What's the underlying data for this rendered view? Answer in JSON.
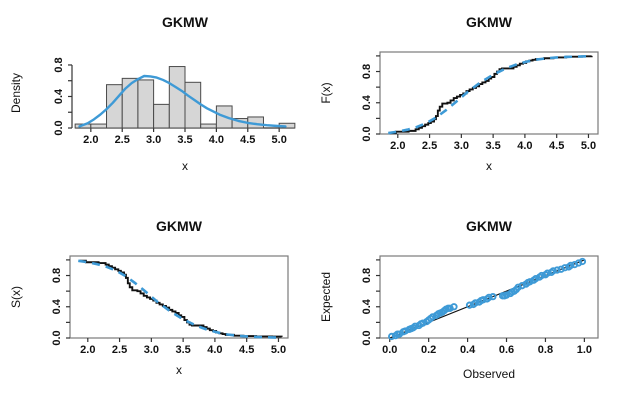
{
  "colors": {
    "curve_blue": "#3E9AD6",
    "bar_fill": "#D6D6D6",
    "bar_stroke": "#4A4A4A",
    "line_black": "#111111",
    "frame_gray": "#7A7A7A",
    "axis": "#333333"
  },
  "chart_data": [
    {
      "type": "bar",
      "subtype": "histogram-with-density-curve",
      "title": "GKMW",
      "xlabel": "x",
      "ylabel": "Density",
      "x_ticks": [
        2.0,
        2.5,
        3.0,
        3.5,
        4.0,
        4.5,
        5.0
      ],
      "x_tick_labels": [
        "2.0",
        "2.5",
        "3.0",
        "3.5",
        "4.0",
        "4.5",
        "5.0"
      ],
      "y_ticks": [
        0,
        0.2,
        0.4,
        0.6,
        0.8
      ],
      "y_tick_labels": [
        "0.0",
        "",
        "0.4",
        "",
        "0.8"
      ],
      "xlim": [
        1.7,
        5.3
      ],
      "ylim": [
        0,
        0.99
      ],
      "grid": false,
      "bars": {
        "start": 1.75,
        "binwidth": 0.25,
        "bin_edges": [
          1.75,
          2.0,
          2.25,
          2.5,
          2.75,
          3.0,
          3.25,
          3.5,
          3.75,
          4.0,
          4.25,
          4.5,
          4.75,
          5.0,
          5.25
        ],
        "densities": [
          0.05,
          0.05,
          0.55,
          0.63,
          0.61,
          0.3,
          0.78,
          0.58,
          0.05,
          0.28,
          0.12,
          0.14,
          0.0,
          0.06
        ]
      },
      "curve": {
        "name": "fitted-density",
        "points": [
          [
            1.82,
            0.02
          ],
          [
            1.95,
            0.06
          ],
          [
            2.05,
            0.11
          ],
          [
            2.15,
            0.17
          ],
          [
            2.25,
            0.24
          ],
          [
            2.35,
            0.32
          ],
          [
            2.45,
            0.41
          ],
          [
            2.55,
            0.5
          ],
          [
            2.65,
            0.57
          ],
          [
            2.75,
            0.62
          ],
          [
            2.85,
            0.66
          ],
          [
            2.95,
            0.655
          ],
          [
            3.05,
            0.64
          ],
          [
            3.15,
            0.61
          ],
          [
            3.25,
            0.57
          ],
          [
            3.35,
            0.52
          ],
          [
            3.45,
            0.47
          ],
          [
            3.55,
            0.41
          ],
          [
            3.65,
            0.355
          ],
          [
            3.75,
            0.3
          ],
          [
            3.85,
            0.25
          ],
          [
            3.95,
            0.21
          ],
          [
            4.05,
            0.17
          ],
          [
            4.2,
            0.125
          ],
          [
            4.35,
            0.09
          ],
          [
            4.5,
            0.065
          ],
          [
            4.65,
            0.048
          ],
          [
            4.8,
            0.036
          ],
          [
            4.95,
            0.027
          ],
          [
            5.1,
            0.02
          ]
        ]
      }
    },
    {
      "type": "line",
      "subtype": "cdf",
      "title": "GKMW",
      "xlabel": "x",
      "ylabel": "F(x)",
      "x_ticks": [
        2.0,
        2.5,
        3.0,
        3.5,
        4.0,
        4.5,
        5.0
      ],
      "x_tick_labels": [
        "2.0",
        "2.5",
        "3.0",
        "3.5",
        "4.0",
        "4.5",
        "5.0"
      ],
      "y_ticks": [
        0,
        0.2,
        0.4,
        0.6,
        0.8,
        1.0
      ],
      "y_tick_labels": [
        "0.0",
        "",
        "0.4",
        "",
        "0.8",
        ""
      ],
      "xlim": [
        1.72,
        5.15
      ],
      "ylim": [
        0,
        1.05
      ],
      "grid": false,
      "series": [
        {
          "name": "empirical-cdf",
          "style": "step",
          "color": "black",
          "points": [
            [
              1.87,
              0.01
            ],
            [
              1.97,
              0.03
            ],
            [
              2.17,
              0.04
            ],
            [
              2.28,
              0.06
            ],
            [
              2.33,
              0.08
            ],
            [
              2.38,
              0.1
            ],
            [
              2.43,
              0.12
            ],
            [
              2.48,
              0.14
            ],
            [
              2.52,
              0.16
            ],
            [
              2.57,
              0.19
            ],
            [
              2.6,
              0.23
            ],
            [
              2.63,
              0.3
            ],
            [
              2.66,
              0.35
            ],
            [
              2.7,
              0.39
            ],
            [
              2.78,
              0.4
            ],
            [
              2.83,
              0.43
            ],
            [
              2.88,
              0.46
            ],
            [
              2.93,
              0.48
            ],
            [
              2.98,
              0.5
            ],
            [
              3.03,
              0.52
            ],
            [
              3.08,
              0.55
            ],
            [
              3.13,
              0.57
            ],
            [
              3.18,
              0.59
            ],
            [
              3.23,
              0.61
            ],
            [
              3.28,
              0.64
            ],
            [
              3.33,
              0.66
            ],
            [
              3.38,
              0.68
            ],
            [
              3.43,
              0.71
            ],
            [
              3.47,
              0.73
            ],
            [
              3.52,
              0.77
            ],
            [
              3.56,
              0.8
            ],
            [
              3.6,
              0.83
            ],
            [
              3.64,
              0.84
            ],
            [
              3.82,
              0.86
            ],
            [
              3.87,
              0.88
            ],
            [
              3.92,
              0.9
            ],
            [
              3.97,
              0.91
            ],
            [
              4.02,
              0.93
            ],
            [
              4.07,
              0.94
            ],
            [
              4.12,
              0.95
            ],
            [
              4.17,
              0.96
            ],
            [
              4.3,
              0.97
            ],
            [
              4.45,
              0.98
            ],
            [
              4.65,
              0.99
            ],
            [
              4.9,
              0.995
            ],
            [
              5.05,
              1.0
            ]
          ]
        },
        {
          "name": "fitted-cdf",
          "style": "dashed",
          "color": "blue",
          "points": [
            [
              1.85,
              0.012
            ],
            [
              2.0,
              0.03
            ],
            [
              2.15,
              0.055
            ],
            [
              2.3,
              0.09
            ],
            [
              2.45,
              0.14
            ],
            [
              2.6,
              0.21
            ],
            [
              2.75,
              0.3
            ],
            [
              2.9,
              0.4
            ],
            [
              3.0,
              0.47
            ],
            [
              3.1,
              0.54
            ],
            [
              3.2,
              0.6
            ],
            [
              3.3,
              0.66
            ],
            [
              3.4,
              0.71
            ],
            [
              3.5,
              0.76
            ],
            [
              3.6,
              0.8
            ],
            [
              3.7,
              0.84
            ],
            [
              3.8,
              0.87
            ],
            [
              3.9,
              0.9
            ],
            [
              4.0,
              0.92
            ],
            [
              4.1,
              0.94
            ],
            [
              4.2,
              0.955
            ],
            [
              4.35,
              0.97
            ],
            [
              4.5,
              0.98
            ],
            [
              4.7,
              0.988
            ],
            [
              4.9,
              0.993
            ],
            [
              5.05,
              0.996
            ]
          ]
        }
      ]
    },
    {
      "type": "line",
      "subtype": "survival",
      "title": "GKMW",
      "xlabel": "x",
      "ylabel": "S(x)",
      "x_ticks": [
        2.0,
        2.5,
        3.0,
        3.5,
        4.0,
        4.5,
        5.0
      ],
      "x_tick_labels": [
        "2.0",
        "2.5",
        "3.0",
        "3.5",
        "4.0",
        "4.5",
        "5.0"
      ],
      "y_ticks": [
        0,
        0.2,
        0.4,
        0.6,
        0.8,
        1.0
      ],
      "y_tick_labels": [
        "0.0",
        "",
        "0.4",
        "",
        "0.8",
        ""
      ],
      "xlim": [
        1.72,
        5.15
      ],
      "ylim": [
        0,
        1.05
      ],
      "grid": false,
      "series": [
        {
          "name": "empirical-survival",
          "style": "step",
          "color": "black",
          "points": [
            [
              1.87,
              0.99
            ],
            [
              1.97,
              0.97
            ],
            [
              2.17,
              0.96
            ],
            [
              2.28,
              0.94
            ],
            [
              2.33,
              0.92
            ],
            [
              2.38,
              0.9
            ],
            [
              2.43,
              0.88
            ],
            [
              2.48,
              0.86
            ],
            [
              2.52,
              0.84
            ],
            [
              2.57,
              0.81
            ],
            [
              2.6,
              0.77
            ],
            [
              2.63,
              0.7
            ],
            [
              2.66,
              0.65
            ],
            [
              2.7,
              0.61
            ],
            [
              2.78,
              0.6
            ],
            [
              2.83,
              0.57
            ],
            [
              2.88,
              0.54
            ],
            [
              2.93,
              0.52
            ],
            [
              2.98,
              0.5
            ],
            [
              3.03,
              0.48
            ],
            [
              3.08,
              0.45
            ],
            [
              3.13,
              0.43
            ],
            [
              3.18,
              0.41
            ],
            [
              3.23,
              0.39
            ],
            [
              3.28,
              0.36
            ],
            [
              3.33,
              0.34
            ],
            [
              3.38,
              0.32
            ],
            [
              3.43,
              0.29
            ],
            [
              3.47,
              0.27
            ],
            [
              3.52,
              0.23
            ],
            [
              3.56,
              0.2
            ],
            [
              3.6,
              0.17
            ],
            [
              3.64,
              0.16
            ],
            [
              3.82,
              0.14
            ],
            [
              3.87,
              0.12
            ],
            [
              3.92,
              0.1
            ],
            [
              3.97,
              0.09
            ],
            [
              4.02,
              0.07
            ],
            [
              4.07,
              0.06
            ],
            [
              4.12,
              0.05
            ],
            [
              4.17,
              0.04
            ],
            [
              4.3,
              0.03
            ],
            [
              4.45,
              0.025
            ],
            [
              4.65,
              0.02
            ],
            [
              4.9,
              0.018
            ],
            [
              5.05,
              0.015
            ]
          ]
        },
        {
          "name": "fitted-survival",
          "style": "dashed",
          "color": "blue",
          "points": [
            [
              1.85,
              0.988
            ],
            [
              2.0,
              0.97
            ],
            [
              2.15,
              0.945
            ],
            [
              2.3,
              0.91
            ],
            [
              2.45,
              0.86
            ],
            [
              2.6,
              0.79
            ],
            [
              2.75,
              0.7
            ],
            [
              2.9,
              0.6
            ],
            [
              3.0,
              0.53
            ],
            [
              3.1,
              0.46
            ],
            [
              3.2,
              0.4
            ],
            [
              3.3,
              0.34
            ],
            [
              3.4,
              0.29
            ],
            [
              3.5,
              0.24
            ],
            [
              3.6,
              0.2
            ],
            [
              3.7,
              0.16
            ],
            [
              3.8,
              0.13
            ],
            [
              3.9,
              0.1
            ],
            [
              4.0,
              0.08
            ],
            [
              4.1,
              0.06
            ],
            [
              4.2,
              0.045
            ],
            [
              4.35,
              0.03
            ],
            [
              4.5,
              0.02
            ],
            [
              4.7,
              0.012
            ],
            [
              4.9,
              0.007
            ],
            [
              5.05,
              0.004
            ]
          ]
        }
      ]
    },
    {
      "type": "scatter",
      "subtype": "pp-plot",
      "title": "GKMW",
      "xlabel": "Observed",
      "ylabel": "Expected",
      "x_ticks": [
        0,
        0.2,
        0.4,
        0.6,
        0.8,
        1.0
      ],
      "x_tick_labels": [
        "0.0",
        "0.2",
        "0.4",
        "0.6",
        "0.8",
        "1.0"
      ],
      "y_ticks": [
        0,
        0.2,
        0.4,
        0.6,
        0.8,
        1.0
      ],
      "y_tick_labels": [
        "0.0",
        "",
        "0.4",
        "",
        "0.8",
        ""
      ],
      "xlim": [
        -0.05,
        1.07
      ],
      "ylim": [
        0,
        1.05
      ],
      "grid": false,
      "ref_line": [
        [
          0,
          0
        ],
        [
          1,
          1
        ]
      ],
      "points": [
        [
          0.01,
          0.02
        ],
        [
          0.03,
          0.03
        ],
        [
          0.04,
          0.05
        ],
        [
          0.05,
          0.05
        ],
        [
          0.07,
          0.08
        ],
        [
          0.08,
          0.09
        ],
        [
          0.1,
          0.11
        ],
        [
          0.11,
          0.12
        ],
        [
          0.12,
          0.13
        ],
        [
          0.13,
          0.15
        ],
        [
          0.15,
          0.16
        ],
        [
          0.16,
          0.18
        ],
        [
          0.17,
          0.19
        ],
        [
          0.19,
          0.21
        ],
        [
          0.2,
          0.23
        ],
        [
          0.21,
          0.25
        ],
        [
          0.22,
          0.27
        ],
        [
          0.24,
          0.29
        ],
        [
          0.25,
          0.31
        ],
        [
          0.26,
          0.32
        ],
        [
          0.27,
          0.33
        ],
        [
          0.28,
          0.35
        ],
        [
          0.29,
          0.37
        ],
        [
          0.3,
          0.38
        ],
        [
          0.31,
          0.38
        ],
        [
          0.33,
          0.4
        ],
        [
          0.41,
          0.42
        ],
        [
          0.43,
          0.43
        ],
        [
          0.44,
          0.45
        ],
        [
          0.46,
          0.46
        ],
        [
          0.47,
          0.48
        ],
        [
          0.48,
          0.49
        ],
        [
          0.5,
          0.5
        ],
        [
          0.51,
          0.52
        ],
        [
          0.53,
          0.53
        ],
        [
          0.58,
          0.54
        ],
        [
          0.59,
          0.54
        ],
        [
          0.6,
          0.55
        ],
        [
          0.62,
          0.57
        ],
        [
          0.63,
          0.59
        ],
        [
          0.64,
          0.6
        ],
        [
          0.65,
          0.62
        ],
        [
          0.66,
          0.65
        ],
        [
          0.68,
          0.67
        ],
        [
          0.7,
          0.69
        ],
        [
          0.71,
          0.71
        ],
        [
          0.72,
          0.72
        ],
        [
          0.74,
          0.74
        ],
        [
          0.75,
          0.76
        ],
        [
          0.77,
          0.78
        ],
        [
          0.78,
          0.8
        ],
        [
          0.8,
          0.81
        ],
        [
          0.81,
          0.83
        ],
        [
          0.83,
          0.84
        ],
        [
          0.84,
          0.86
        ],
        [
          0.86,
          0.87
        ],
        [
          0.88,
          0.88
        ],
        [
          0.9,
          0.9
        ],
        [
          0.92,
          0.91
        ],
        [
          0.93,
          0.93
        ],
        [
          0.95,
          0.94
        ],
        [
          0.97,
          0.96
        ],
        [
          0.99,
          0.98
        ]
      ]
    }
  ]
}
